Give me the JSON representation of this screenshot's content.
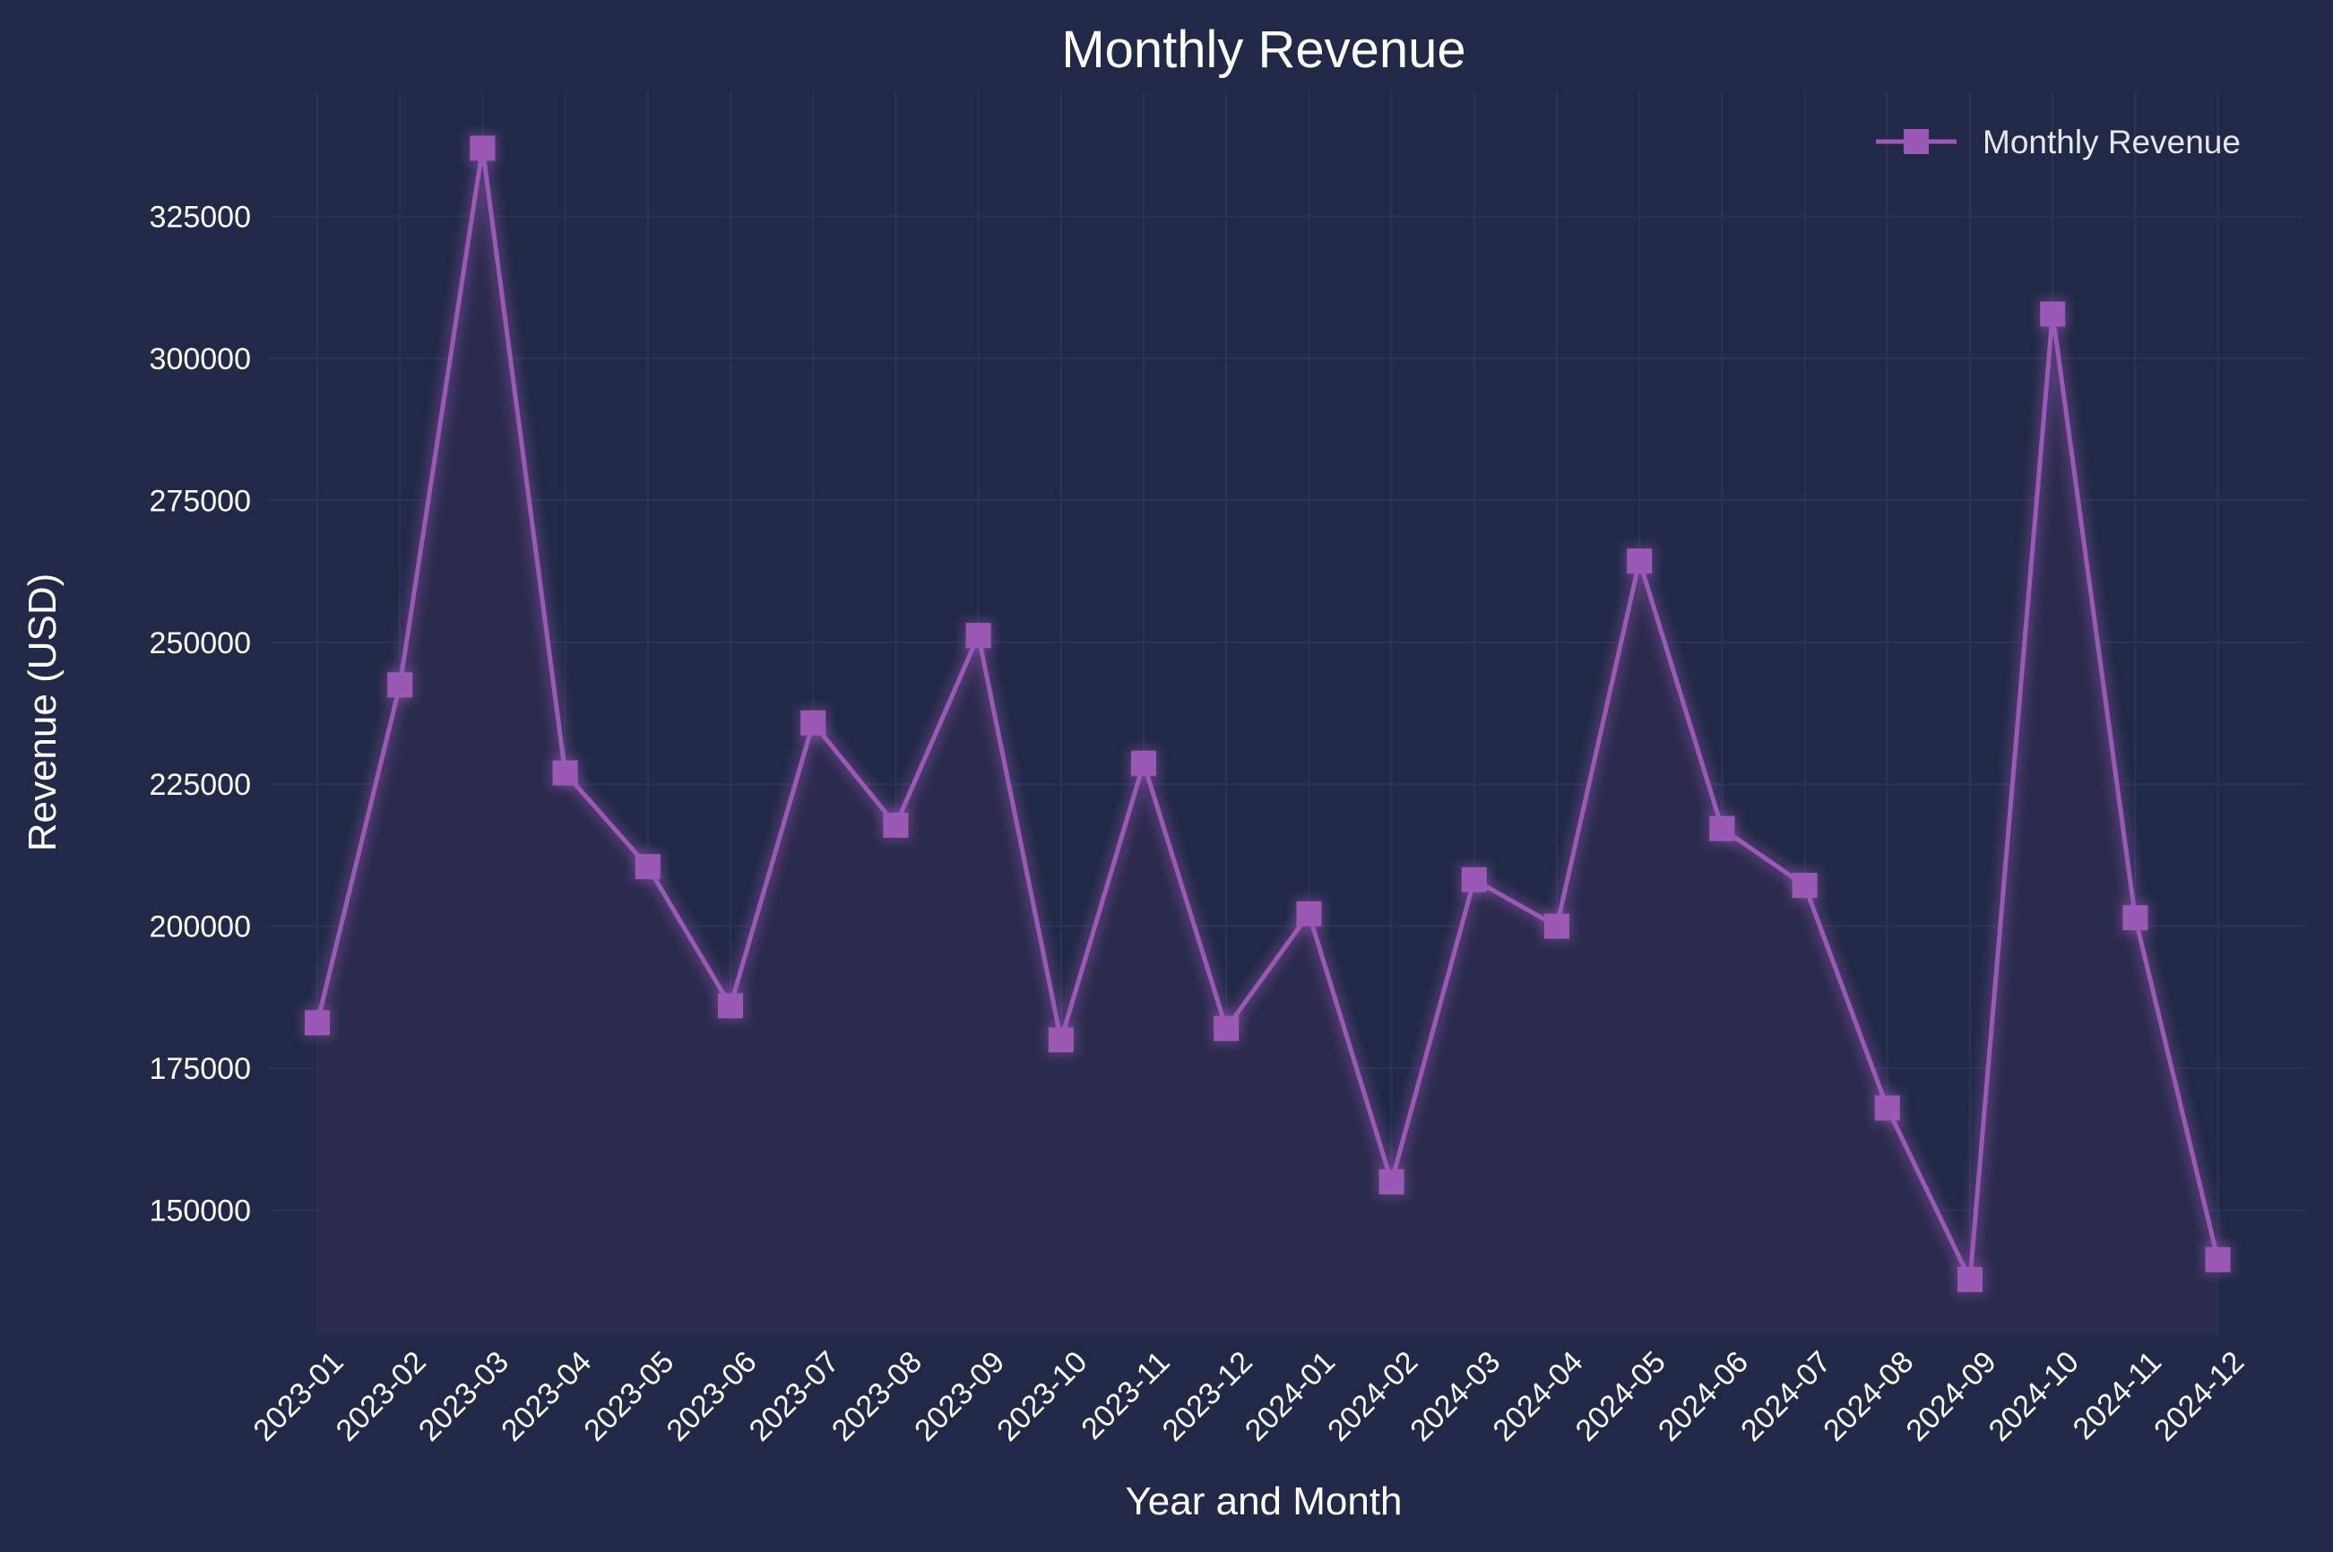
{
  "chart_data": {
    "type": "line",
    "title": "Monthly Revenue",
    "xlabel": "Year and Month",
    "ylabel": "Revenue (USD)",
    "categories": [
      "2023-01",
      "2023-02",
      "2023-03",
      "2023-04",
      "2023-05",
      "2023-06",
      "2023-07",
      "2023-08",
      "2023-09",
      "2023-10",
      "2023-11",
      "2023-12",
      "2024-01",
      "2024-02",
      "2024-03",
      "2024-04",
      "2024-05",
      "2024-06",
      "2024-07",
      "2024-08",
      "2024-09",
      "2024-10",
      "2024-11",
      "2024-12"
    ],
    "series": [
      {
        "name": "Monthly Revenue",
        "values": [
          183000,
          242500,
          337000,
          227000,
          210500,
          186000,
          235800,
          217800,
          251200,
          180000,
          228700,
          182000,
          202200,
          155000,
          208200,
          200000,
          264300,
          217200,
          207200,
          168000,
          137800,
          307800,
          201500,
          141300
        ],
        "color": "#9b59b6",
        "marker": "square"
      }
    ],
    "yticks": [
      150000,
      175000,
      200000,
      225000,
      250000,
      275000,
      300000,
      325000
    ],
    "ylim": [
      128000,
      347000
    ],
    "grid": true,
    "legend": "top-right",
    "colors": {
      "background": "#212946",
      "grid": "#2a3459",
      "line": "#9b59b6",
      "fill": "#2d2b50",
      "text": "#ffffff"
    }
  }
}
